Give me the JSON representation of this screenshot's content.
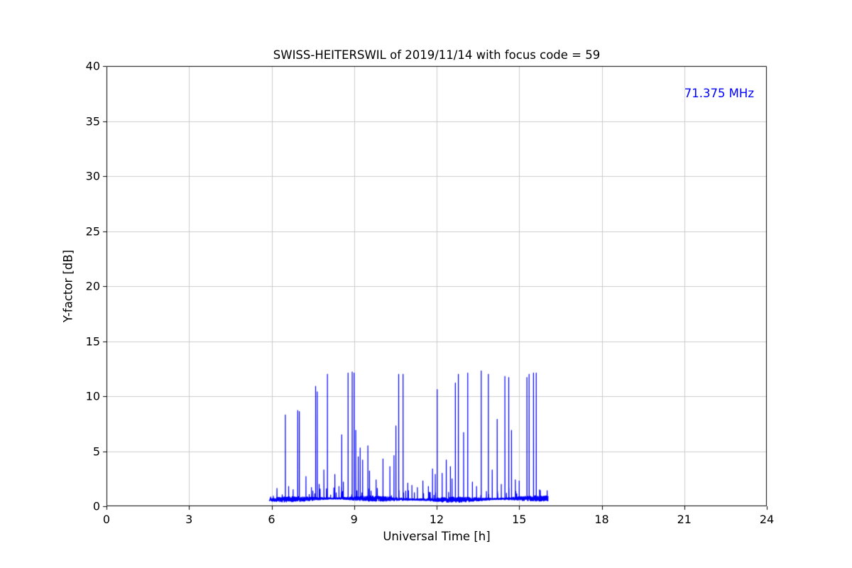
{
  "figure": {
    "background": "#ffffff"
  },
  "chart_data": {
    "type": "line",
    "title": "SWISS-HEITERSWIL of 2019/11/14 with focus code = 59",
    "xlabel": "Universal Time [h]",
    "ylabel": "Y-factor [dB]",
    "xlim": [
      0,
      24
    ],
    "ylim": [
      0,
      40
    ],
    "xticks": [
      0,
      3,
      6,
      9,
      12,
      15,
      18,
      21,
      24
    ],
    "yticks": [
      0,
      5,
      10,
      15,
      20,
      25,
      30,
      35,
      40
    ],
    "grid": true,
    "grid_color": "#cccccc",
    "axis_color": "#000000",
    "line_color": "#0000ff",
    "legend_position": "none",
    "annotation": {
      "text": "71.375 MHz",
      "color": "#0000ff",
      "position": "top-right"
    },
    "series": [
      {
        "name": "71.375 MHz",
        "description": "Noisy Y-factor baseline ~0.4-1.0 dB recorded between ~5.9 h and ~16.05 h UT, flat elsewhere (no data outside window), with many narrow spikes",
        "signal": {
          "start_h": 5.92,
          "end_h": 16.05,
          "baseline_db": 0.65,
          "noise_amplitude_db": 0.25,
          "spikes": [
            [
              6.5,
              8.3
            ],
            [
              6.62,
              1.8
            ],
            [
              6.95,
              8.7
            ],
            [
              7.01,
              8.6
            ],
            [
              7.25,
              2.7
            ],
            [
              7.45,
              1.7
            ],
            [
              7.6,
              10.9
            ],
            [
              7.66,
              10.4
            ],
            [
              7.73,
              2.0
            ],
            [
              7.9,
              3.3
            ],
            [
              8.03,
              12.0
            ],
            [
              8.3,
              2.9
            ],
            [
              8.45,
              1.8
            ],
            [
              8.55,
              6.5
            ],
            [
              8.61,
              2.2
            ],
            [
              8.78,
              12.1
            ],
            [
              8.93,
              12.2
            ],
            [
              9.0,
              12.1
            ],
            [
              9.06,
              6.9
            ],
            [
              9.15,
              4.5
            ],
            [
              9.22,
              5.3
            ],
            [
              9.31,
              4.2
            ],
            [
              9.5,
              5.5
            ],
            [
              9.56,
              3.2
            ],
            [
              9.8,
              2.4
            ],
            [
              10.05,
              4.3
            ],
            [
              10.3,
              3.6
            ],
            [
              10.45,
              4.6
            ],
            [
              10.52,
              7.3
            ],
            [
              10.62,
              12.0
            ],
            [
              10.78,
              12.0
            ],
            [
              10.95,
              2.1
            ],
            [
              11.1,
              1.9
            ],
            [
              11.3,
              1.7
            ],
            [
              11.5,
              2.3
            ],
            [
              11.7,
              1.8
            ],
            [
              11.85,
              3.4
            ],
            [
              11.95,
              2.9
            ],
            [
              12.02,
              10.6
            ],
            [
              12.2,
              3.0
            ],
            [
              12.35,
              4.2
            ],
            [
              12.5,
              3.6
            ],
            [
              12.56,
              2.5
            ],
            [
              12.68,
              11.2
            ],
            [
              12.79,
              12.0
            ],
            [
              12.98,
              6.7
            ],
            [
              13.13,
              12.1
            ],
            [
              13.3,
              2.2
            ],
            [
              13.45,
              1.8
            ],
            [
              13.62,
              12.3
            ],
            [
              13.88,
              12.0
            ],
            [
              14.02,
              3.3
            ],
            [
              14.2,
              7.9
            ],
            [
              14.35,
              2.0
            ],
            [
              14.48,
              11.8
            ],
            [
              14.62,
              11.7
            ],
            [
              14.72,
              6.9
            ],
            [
              14.86,
              2.4
            ],
            [
              15.0,
              2.3
            ],
            [
              15.28,
              11.7
            ],
            [
              15.36,
              12.0
            ],
            [
              15.52,
              12.1
            ],
            [
              15.62,
              12.1
            ],
            [
              15.74,
              1.5
            ]
          ]
        }
      }
    ]
  }
}
